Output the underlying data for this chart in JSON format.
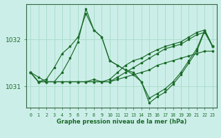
{
  "title": "Graphe pression niveau de la mer (hPa)",
  "background_color": "#cceee8",
  "grid_color": "#aaddcc",
  "line_color": "#1a6b2a",
  "x_ticks": [
    0,
    1,
    2,
    3,
    4,
    5,
    6,
    7,
    8,
    9,
    10,
    11,
    12,
    13,
    14,
    15,
    16,
    17,
    18,
    19,
    20,
    21,
    22,
    23
  ],
  "ylim": [
    1030.55,
    1032.75
  ],
  "yticks": [
    1031,
    1032
  ],
  "series": [
    [
      1031.3,
      1031.2,
      1031.1,
      1031.1,
      1031.1,
      1031.1,
      1031.1,
      1031.1,
      1031.1,
      1031.1,
      1031.1,
      1031.15,
      1031.2,
      1031.25,
      1031.3,
      1031.35,
      1031.45,
      1031.5,
      1031.55,
      1031.6,
      1031.65,
      1031.7,
      1031.75,
      1031.75
    ],
    [
      1031.3,
      1031.1,
      1031.1,
      1031.1,
      1031.1,
      1031.1,
      1031.1,
      1031.1,
      1031.1,
      1031.1,
      1031.1,
      1031.2,
      1031.3,
      1031.4,
      1031.5,
      1031.6,
      1031.7,
      1031.8,
      1031.85,
      1031.9,
      1032.0,
      1032.1,
      1032.15,
      1031.85
    ],
    [
      1031.3,
      1031.1,
      1031.1,
      1031.1,
      1031.1,
      1031.1,
      1031.1,
      1031.1,
      1031.15,
      1031.1,
      1031.15,
      1031.3,
      1031.45,
      1031.55,
      1031.6,
      1031.7,
      1031.78,
      1031.85,
      1031.9,
      1031.95,
      1032.05,
      1032.15,
      1032.2,
      1031.85
    ],
    [
      1031.3,
      1031.1,
      1031.15,
      1031.4,
      1031.7,
      1031.85,
      1032.05,
      1032.55,
      1032.2,
      1032.05,
      1031.55,
      1031.45,
      1031.35,
      1031.3,
      1031.1,
      1030.75,
      1030.85,
      1030.95,
      1031.1,
      1031.3,
      1031.55,
      1031.8,
      1032.2,
      1031.85
    ],
    [
      1031.3,
      1031.1,
      1031.1,
      1031.1,
      1031.3,
      1031.6,
      1031.95,
      1032.65,
      1032.2,
      1032.05,
      1031.55,
      1031.45,
      1031.35,
      1031.25,
      1031.1,
      1030.65,
      1030.78,
      1030.88,
      1031.05,
      1031.25,
      1031.5,
      1031.75,
      1032.18,
      1031.85
    ]
  ]
}
